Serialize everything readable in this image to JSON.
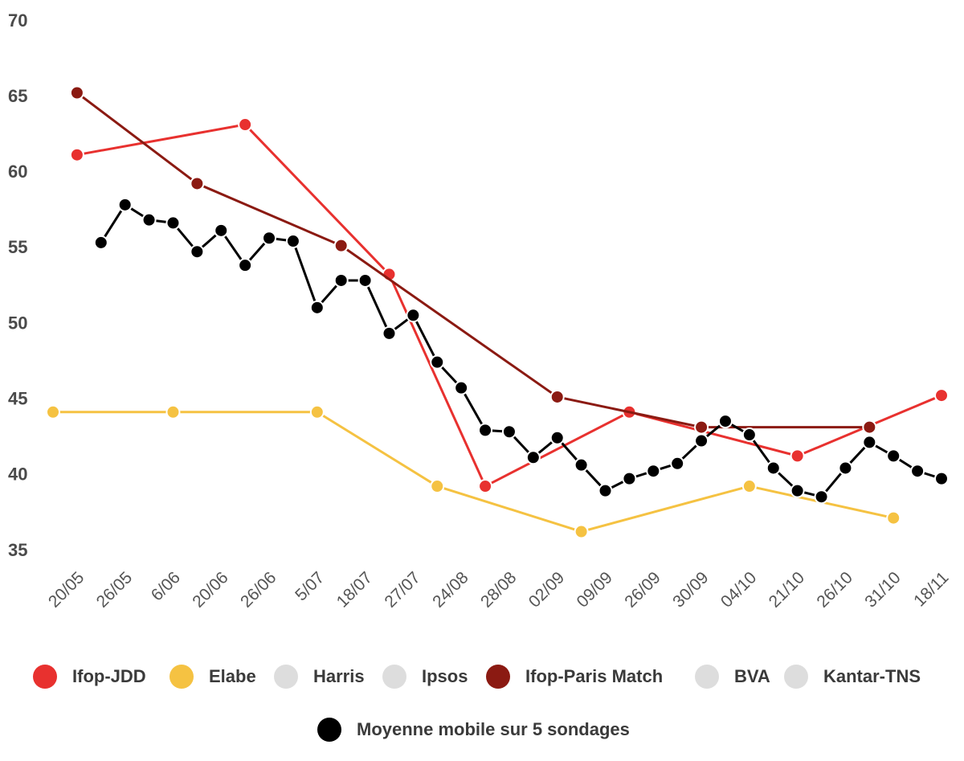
{
  "chart_data": {
    "type": "line",
    "xlim": [
      -0.5,
      18
    ],
    "xticks": [
      {
        "value": 0,
        "label": "20/05"
      },
      {
        "value": 1,
        "label": "26/05"
      },
      {
        "value": 2,
        "label": "6/06"
      },
      {
        "value": 3,
        "label": "20/06"
      },
      {
        "value": 4,
        "label": "26/06"
      },
      {
        "value": 5,
        "label": "5/07"
      },
      {
        "value": 6,
        "label": "18/07"
      },
      {
        "value": 7,
        "label": "27/07"
      },
      {
        "value": 8,
        "label": "24/08"
      },
      {
        "value": 9,
        "label": "28/08"
      },
      {
        "value": 10,
        "label": "02/09"
      },
      {
        "value": 11,
        "label": "09/09"
      },
      {
        "value": 12,
        "label": "26/09"
      },
      {
        "value": 13,
        "label": "30/09"
      },
      {
        "value": 14,
        "label": "04/10"
      },
      {
        "value": 15,
        "label": "21/10"
      },
      {
        "value": 16,
        "label": "26/10"
      },
      {
        "value": 17,
        "label": "31/10"
      },
      {
        "value": 18,
        "label": "18/11"
      }
    ],
    "ylim": [
      35,
      70
    ],
    "yticks": [
      35,
      40,
      45,
      50,
      55,
      60,
      65,
      70
    ],
    "grid": false,
    "series": [
      {
        "name": "Ifop-JDD",
        "color": "#e8312f",
        "x": [
          0,
          3.5,
          6.5,
          8.5,
          11.5,
          15,
          18
        ],
        "values": [
          61.2,
          63.2,
          53.3,
          39.3,
          44.2,
          41.3,
          45.3
        ]
      },
      {
        "name": "Elabe",
        "color": "#f5c242",
        "x": [
          -0.5,
          2,
          5,
          7.5,
          10.5,
          14,
          17
        ],
        "values": [
          44.2,
          44.2,
          44.2,
          39.3,
          36.3,
          39.3,
          37.2
        ]
      },
      {
        "name": "Harris",
        "color": "#dddddd",
        "x": [],
        "values": []
      },
      {
        "name": "Ipsos",
        "color": "#dddddd",
        "x": [],
        "values": []
      },
      {
        "name": "Ifop-Paris Match",
        "color": "#8b1a12",
        "x": [
          0,
          2.5,
          5.5,
          10,
          13,
          16.5
        ],
        "values": [
          65.3,
          59.3,
          55.2,
          45.2,
          43.2,
          43.2
        ]
      },
      {
        "name": "BVA",
        "color": "#dddddd",
        "x": [],
        "values": []
      },
      {
        "name": "Kantar-TNS",
        "color": "#dddddd",
        "x": [],
        "values": []
      },
      {
        "name": "Moyenne mobile sur 5 sondages",
        "color": "#000000",
        "x": [
          0.5,
          1,
          1.5,
          2,
          2.5,
          3,
          3.5,
          4,
          4.5,
          5,
          5.5,
          6,
          6.5,
          7,
          7.5,
          8,
          8.5,
          9,
          9.5,
          10,
          10.5,
          11,
          11.5,
          12,
          12.5,
          13,
          13.5,
          14,
          14.5,
          15,
          15.5,
          16,
          16.5,
          17,
          17.5,
          18
        ],
        "values": [
          55.4,
          57.9,
          56.9,
          56.7,
          54.8,
          56.2,
          53.9,
          55.7,
          55.5,
          51.1,
          52.9,
          52.9,
          49.4,
          50.6,
          47.5,
          45.8,
          43.0,
          42.9,
          41.2,
          42.5,
          40.7,
          39.0,
          39.8,
          40.3,
          40.8,
          42.3,
          43.6,
          42.7,
          40.5,
          39.0,
          38.6,
          40.5,
          42.2,
          41.3,
          40.3,
          39.8
        ]
      }
    ]
  }
}
